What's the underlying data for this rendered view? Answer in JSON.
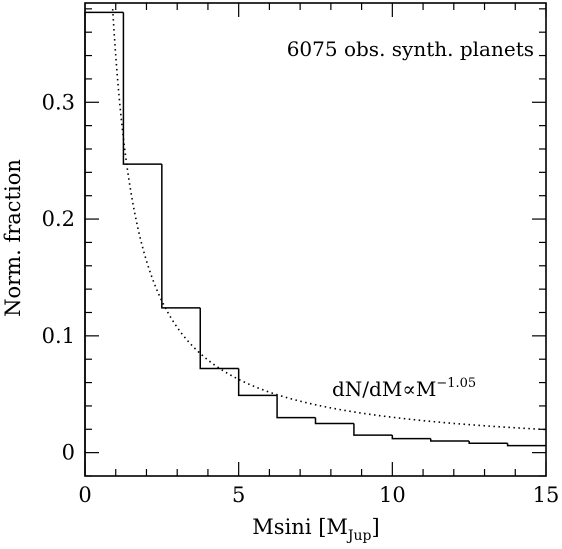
{
  "chart_data": {
    "type": "bar",
    "subtype": "step-histogram",
    "xlabel": "Msini [M",
    "xlabel_sub": "Jup",
    "xlabel_end": "]",
    "ylabel": "Norm. fraction",
    "xlim": [
      0,
      15
    ],
    "ylim": [
      -0.02,
      0.385
    ],
    "x_major_ticks": [
      0,
      5,
      10,
      15
    ],
    "x_tick_labels": [
      "0",
      "5",
      "10",
      "15"
    ],
    "x_minor_step": 1,
    "y_major_ticks": [
      0,
      0.1,
      0.2,
      0.3
    ],
    "y_tick_labels": [
      "0",
      "0.1",
      "0.2",
      "0.3"
    ],
    "y_minor_step": 0.02,
    "bin_edges": [
      0,
      1.25,
      2.5,
      3.75,
      5,
      6.25,
      7.5,
      8.75,
      10,
      11.25,
      12.5,
      13.75,
      15
    ],
    "values": [
      0.377,
      0.247,
      0.124,
      0.072,
      0.049,
      0.03,
      0.025,
      0.015,
      0.012,
      0.01,
      0.008,
      0.006
    ],
    "series": [
      {
        "kind": "power-law-fit",
        "amplitude": 0.34,
        "exponent": -1.05,
        "x_start": 0.9,
        "x_end": 15
      }
    ],
    "annotations": {
      "top_label": "6075 obs. synth. planets",
      "fit_label_main": "dN/dM∝M",
      "fit_label_exp": "−1.05"
    },
    "grid": false,
    "legend": "none"
  }
}
